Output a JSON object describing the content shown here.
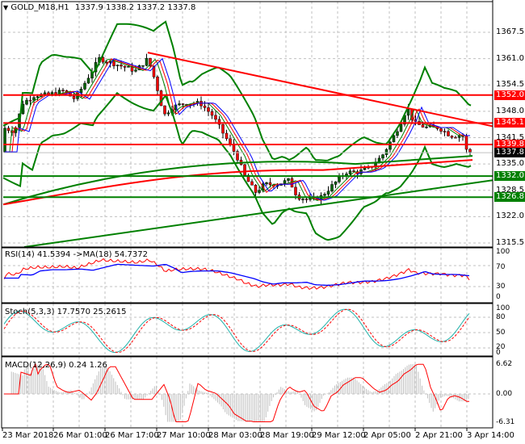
{
  "header": {
    "arrow": "▼",
    "symbol": "GOLD_M18,H1",
    "ohlc": "1337.9 1338.2 1337.2 1337.8"
  },
  "price_axis": {
    "ticks": [
      "1367.5",
      "1361.0",
      "1354.5",
      "1348.0",
      "1341.5",
      "1335.0",
      "1328.5",
      "1322.0",
      "1315.5"
    ],
    "tags": [
      {
        "value": "1352.0",
        "color": "#ff0000"
      },
      {
        "value": "1345.1",
        "color": "#ff0000"
      },
      {
        "value": "1339.8",
        "color": "#ff0000"
      },
      {
        "value": "1337.8",
        "color": "#000000"
      },
      {
        "value": "1332.0",
        "color": "#008000"
      },
      {
        "value": "1326.8",
        "color": "#008000"
      }
    ]
  },
  "rsi": {
    "title": "RSI(14) 41.5394  ->MA(18) 54.7372",
    "ticks": [
      "100",
      "70",
      "30",
      "0"
    ]
  },
  "stoch": {
    "title": "Stoch(5,3,3) 17.7570 25.2615",
    "ticks": [
      "100",
      "80",
      "50",
      "20",
      "0"
    ]
  },
  "macd": {
    "title": "MACD(12,26,9) 0.24 1.26",
    "ticks": [
      "6.62",
      "0.00",
      "-6.31"
    ]
  },
  "time_axis": [
    "23 Mar 2018",
    "26 Mar 01:00",
    "26 Mar 17:00",
    "27 Mar 10:00",
    "28 Mar 03:00",
    "28 Mar 19:00",
    "29 Mar 12:00",
    "2 Apr 05:00",
    "2 Apr 21:00",
    "3 Apr 14:00"
  ],
  "colors": {
    "support": "#008000",
    "resistance": "#ff0000",
    "bull": "#006400",
    "bear": "#ff0000",
    "rsi": "#ff0000",
    "rsi_ma": "#0000ff",
    "stoch_main": "#20b2aa",
    "stoch_signal": "#ff0000",
    "macd_hist": "#c0c0c0",
    "macd_signal": "#ff0000"
  },
  "chart_data": [
    {
      "type": "candlestick",
      "title": "GOLD_M18,H1",
      "last_ohlc": {
        "open": 1337.9,
        "high": 1338.2,
        "low": 1337.2,
        "close": 1337.8
      },
      "ylim": [
        1313,
        1372
      ],
      "x_labels": [
        "23 Mar 2018",
        "26 Mar 01:00",
        "26 Mar 17:00",
        "27 Mar 10:00",
        "28 Mar 03:00",
        "28 Mar 19:00",
        "29 Mar 12:00",
        "2 Apr 05:00",
        "2 Apr 21:00",
        "3 Apr 14:00"
      ],
      "approx_close_path": [
        {
          "x": "23 Mar 2018",
          "close": 1344
        },
        {
          "x": "26 Mar 01:00",
          "close": 1352
        },
        {
          "x": "26 Mar 17:00",
          "close": 1360
        },
        {
          "x": "27 Mar 10:00",
          "close": 1350
        },
        {
          "x": "28 Mar 03:00",
          "close": 1342
        },
        {
          "x": "28 Mar 19:00",
          "close": 1331
        },
        {
          "x": "29 Mar 12:00",
          "close": 1328
        },
        {
          "x": "2 Apr 05:00",
          "close": 1335
        },
        {
          "x": "2 Apr 21:00",
          "close": 1346
        },
        {
          "x": "3 Apr 14:00",
          "close": 1337.8
        }
      ],
      "horizontal_levels": [
        {
          "value": 1352.0,
          "type": "resistance"
        },
        {
          "value": 1345.1,
          "type": "resistance"
        },
        {
          "value": 1339.8,
          "type": "resistance"
        },
        {
          "value": 1332.0,
          "type": "support"
        },
        {
          "value": 1326.8,
          "type": "support"
        }
      ],
      "trendlines": [
        {
          "color": "red",
          "from": 1362.5,
          "to": 1344.5,
          "desc": "descending resistance"
        },
        {
          "color": "green",
          "from": 1314.5,
          "to": 1331,
          "desc": "ascending support"
        }
      ],
      "overlays": [
        "Bollinger Bands (green)",
        "Moving averages (red, blue, green)"
      ],
      "grid": true
    },
    {
      "type": "line",
      "title": "RSI(14) 41.5394 ->MA(18) 54.7372",
      "series": [
        {
          "name": "RSI(14)",
          "last": 41.5394
        },
        {
          "name": "MA(18)",
          "last": 54.7372
        }
      ],
      "ylim": [
        0,
        100
      ],
      "ticks": [
        100,
        70,
        30,
        0
      ]
    },
    {
      "type": "line",
      "title": "Stoch(5,3,3) 17.7570 25.2615",
      "series": [
        {
          "name": "%K",
          "last": 17.757
        },
        {
          "name": "%D",
          "last": 25.2615
        }
      ],
      "ylim": [
        0,
        100
      ],
      "ticks": [
        100,
        80,
        50,
        20,
        0
      ]
    },
    {
      "type": "bar",
      "title": "MACD(12,26,9) 0.24 1.26",
      "series": [
        {
          "name": "MACD",
          "last": 0.24
        },
        {
          "name": "Signal",
          "last": 1.26
        }
      ],
      "ylim": [
        -6.31,
        6.62
      ],
      "ticks": [
        6.62,
        0.0,
        -6.31
      ]
    }
  ]
}
